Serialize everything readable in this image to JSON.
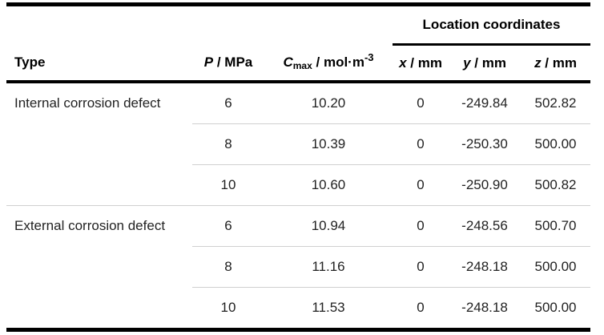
{
  "table": {
    "span_header": "Location coordinates",
    "columns": {
      "type": "Type",
      "p": {
        "var": "P",
        "rest": " / MPa"
      },
      "cmax": {
        "var": "C",
        "sub": "max",
        "rest": " / mol·m",
        "sup": "-3"
      },
      "x": {
        "var": "x",
        "rest": " / mm"
      },
      "y": {
        "var": "y",
        "rest": " / mm"
      },
      "z": {
        "var": "z",
        "rest": " / mm"
      }
    },
    "groups": [
      {
        "type": "Internal corrosion defect",
        "rows": [
          {
            "p": "6",
            "cmax": "10.20",
            "x": "0",
            "y": "-249.84",
            "z": "502.82"
          },
          {
            "p": "8",
            "cmax": "10.39",
            "x": "0",
            "y": "-250.30",
            "z": "500.00"
          },
          {
            "p": "10",
            "cmax": "10.60",
            "x": "0",
            "y": "-250.90",
            "z": "500.82"
          }
        ]
      },
      {
        "type": "External corrosion defect",
        "rows": [
          {
            "p": "6",
            "cmax": "10.94",
            "x": "0",
            "y": "-248.56",
            "z": "500.70"
          },
          {
            "p": "8",
            "cmax": "11.16",
            "x": "0",
            "y": "-248.18",
            "z": "500.00"
          },
          {
            "p": "10",
            "cmax": "11.53",
            "x": "0",
            "y": "-248.18",
            "z": "500.00"
          }
        ]
      }
    ],
    "colors": {
      "heavy_border": "#000000",
      "light_border": "#d0d0d0",
      "header_text": "#000000",
      "body_text": "#222222"
    }
  }
}
